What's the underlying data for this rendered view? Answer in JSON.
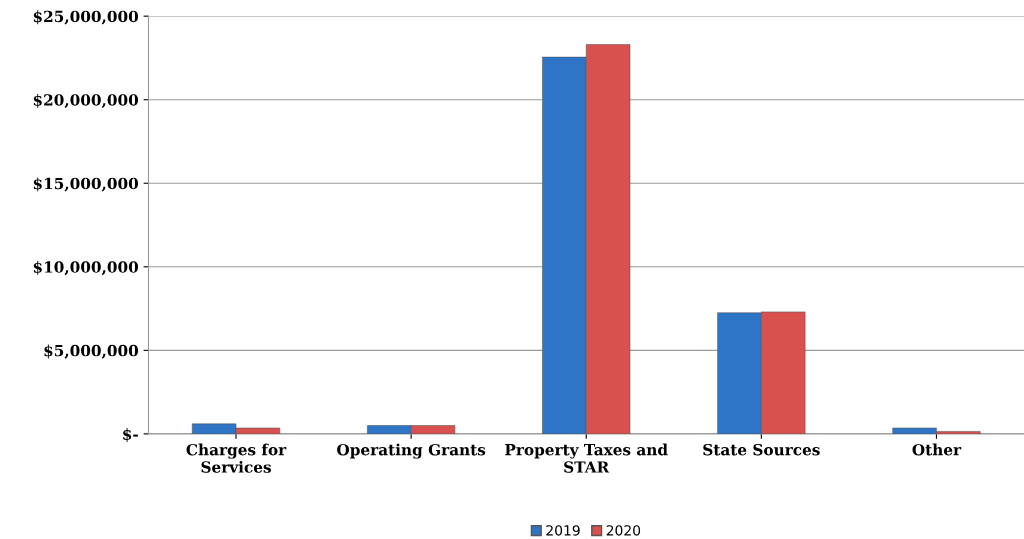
{
  "chart_data": {
    "type": "bar",
    "categories": [
      "Charges for\nServices",
      "Operating Grants",
      "Property Taxes and\nSTAR",
      "State Sources",
      "Other"
    ],
    "series": [
      {
        "name": "2019",
        "color": "#2e75c6",
        "values": [
          600000,
          500000,
          22550000,
          7250000,
          350000
        ]
      },
      {
        "name": "2020",
        "color": "#d9514f",
        "values": [
          350000,
          500000,
          23300000,
          7300000,
          150000
        ]
      }
    ],
    "ylim": [
      0,
      25000000
    ],
    "yticks": [
      {
        "value": 0,
        "label": "$-"
      },
      {
        "value": 5000000,
        "label": "$5,000,000"
      },
      {
        "value": 10000000,
        "label": "$10,000,000"
      },
      {
        "value": 15000000,
        "label": "$15,000,000"
      },
      {
        "value": 20000000,
        "label": "$20,000,000"
      },
      {
        "value": 25000000,
        "label": "$25,000,000"
      }
    ],
    "grid": "y",
    "legend": "bottom"
  }
}
